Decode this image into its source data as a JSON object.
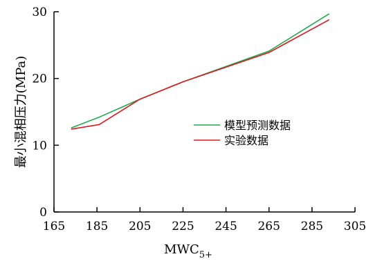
{
  "chart_data": {
    "type": "line",
    "xlabel": "MWC",
    "xlabel_sub": "5+",
    "ylabel": "最小混相压力(MPa)",
    "xlim": [
      165,
      305
    ],
    "ylim": [
      0,
      30
    ],
    "xticks": [
      165,
      185,
      205,
      225,
      245,
      265,
      285,
      305
    ],
    "yticks": [
      0,
      10,
      20,
      30
    ],
    "grid": false,
    "legend_position": "center-right",
    "series": [
      {
        "name": "模型预测数据",
        "color": "#1aaa4a",
        "x": [
          173,
          186,
          205,
          225,
          245,
          265,
          293
        ],
        "y": [
          12.6,
          14.2,
          16.9,
          19.5,
          21.8,
          24.1,
          29.7
        ]
      },
      {
        "name": "实验数据",
        "color": "#e0161b",
        "x": [
          173,
          186,
          205,
          225,
          245,
          265,
          293
        ],
        "y": [
          12.4,
          13.1,
          16.9,
          19.5,
          21.7,
          23.9,
          28.8
        ]
      }
    ]
  }
}
